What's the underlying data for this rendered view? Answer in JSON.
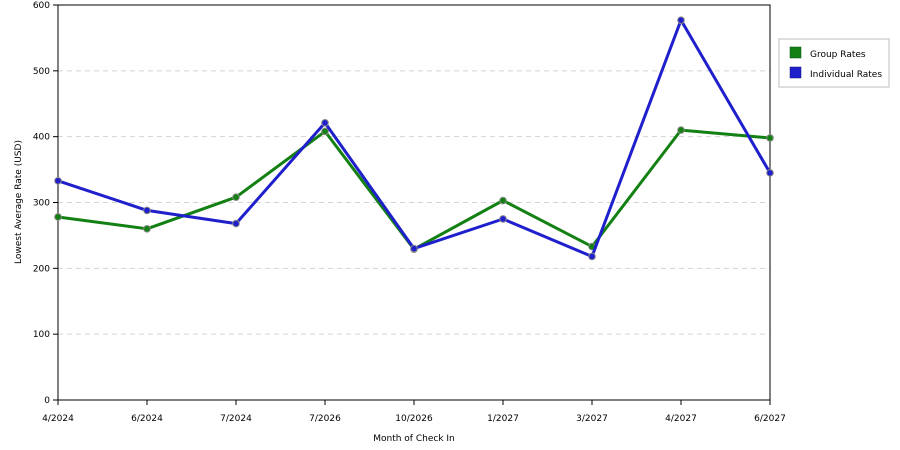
{
  "chart_data": {
    "type": "line",
    "title": "",
    "xlabel": "Month of Check In",
    "ylabel": "Lowest Average Rate (USD)",
    "categories": [
      "4/2024",
      "6/2024",
      "7/2024",
      "7/2026",
      "10/2026",
      "1/2027",
      "3/2027",
      "4/2027",
      "6/2027"
    ],
    "ylim": [
      0,
      600
    ],
    "yticks": [
      0,
      100,
      200,
      300,
      400,
      500,
      600
    ],
    "grid": "horizontal-dashed",
    "legend_position": "right",
    "series": [
      {
        "name": "Group Rates",
        "color": "#138013",
        "values": [
          278,
          260,
          308,
          408,
          229,
          303,
          233,
          410,
          398
        ]
      },
      {
        "name": "Individual Rates",
        "color": "#1f1fcc",
        "values": [
          333,
          288,
          268,
          421,
          230,
          275,
          218,
          577,
          345
        ]
      }
    ]
  }
}
